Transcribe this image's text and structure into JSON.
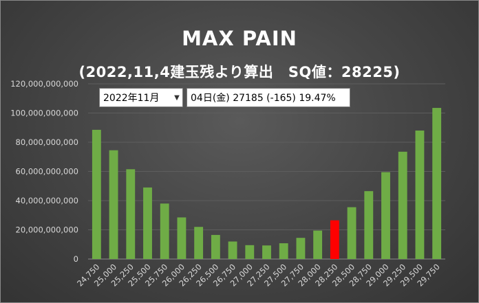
{
  "title": "MAX PAIN",
  "subtitle": "(2022,11,4建玉残より算出　SQ値：28225)",
  "controls": {
    "month_select_value": "2022年11月",
    "info_text": "04日(金) 27185 (-165) 19.47%"
  },
  "colors": {
    "background": "#474747",
    "bar": "#6fac46",
    "highlight_bar": "#ff0000",
    "gridline": "#5e5e5e",
    "text": "#ffffff"
  },
  "chart_data": {
    "type": "bar",
    "title": "MAX PAIN",
    "subtitle": "(2022,11,4建玉残より算出　SQ値：28225)",
    "categories": [
      "24,750",
      "25,000",
      "25,250",
      "25,500",
      "25,750",
      "26,000",
      "26,250",
      "26,500",
      "26,750",
      "27,000",
      "27,250",
      "27,500",
      "27,750",
      "28,000",
      "28,250",
      "28,500",
      "28,750",
      "29,000",
      "29,250",
      "29,500",
      "29,750"
    ],
    "values": [
      88500000000,
      74500000000,
      61500000000,
      49000000000,
      38000000000,
      28500000000,
      22000000000,
      16500000000,
      12000000000,
      9500000000,
      9300000000,
      10800000000,
      14500000000,
      19500000000,
      26500000000,
      35500000000,
      46500000000,
      59500000000,
      73500000000,
      88000000000,
      103500000000
    ],
    "highlight_category": "28,250",
    "yticks": [
      "0",
      "20,000,000,000",
      "40,000,000,000",
      "60,000,000,000",
      "80,000,000,000",
      "100,000,000,000",
      "120,000,000,000"
    ],
    "ylim": [
      0,
      120000000000
    ],
    "grid": true,
    "legend": "none"
  }
}
